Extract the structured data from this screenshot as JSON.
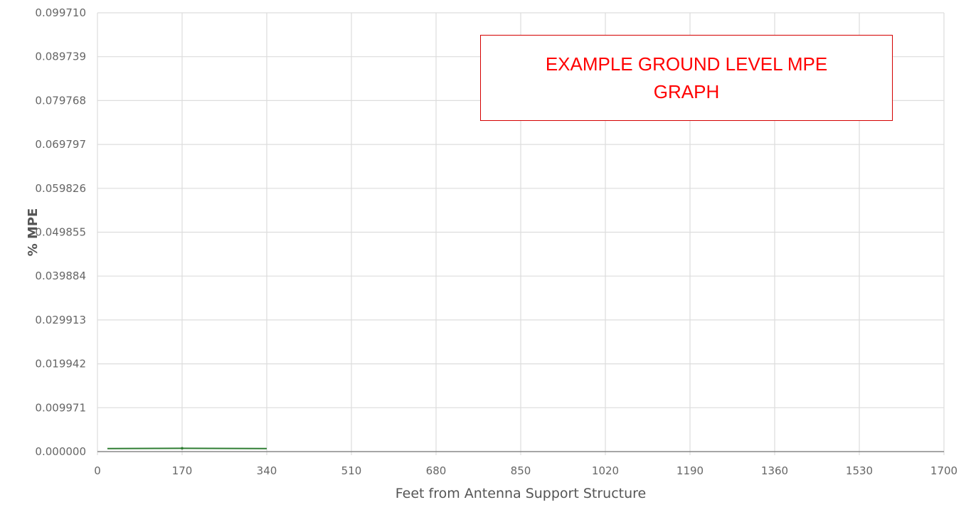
{
  "chart_data": {
    "type": "line",
    "xlabel": "Feet from Antenna Support Structure",
    "ylabel": "% MPE",
    "xlim": [
      0,
      1700
    ],
    "ylim": [
      0,
      0.09971
    ],
    "x_ticks": [
      "0",
      "170",
      "340",
      "510",
      "680",
      "850",
      "1020",
      "1190",
      "1360",
      "1530",
      "1700"
    ],
    "y_ticks": [
      "0.000000",
      "0.009971",
      "0.019942",
      "0.029913",
      "0.039884",
      "0.049855",
      "0.059826",
      "0.069797",
      "0.079768",
      "0.089739",
      "0.099710"
    ],
    "grid": true,
    "series": [
      {
        "color": "#2e7d32",
        "x": [
          20,
          170,
          340
        ],
        "y": [
          0.0007,
          0.00075,
          0.0007
        ]
      }
    ],
    "annotation": "EXAMPLE GROUND LEVEL MPE GRAPH"
  },
  "colors": {
    "grid": "#dddddd",
    "axis": "#888888",
    "series": "#2e7d32",
    "annotation_text": "#ff0000",
    "annotation_border": "#d40000"
  }
}
